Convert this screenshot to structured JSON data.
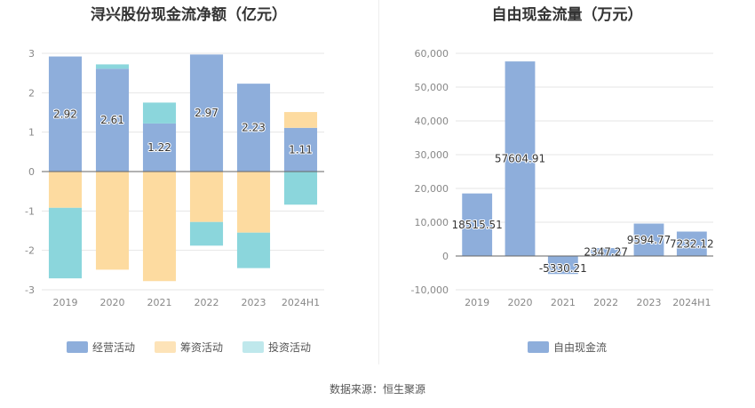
{
  "source": "数据来源：恒生聚源",
  "chart_data": [
    {
      "type": "bar",
      "stacked": true,
      "title": "浔兴股份现金流净额（亿元）",
      "categories": [
        "2019",
        "2020",
        "2021",
        "2022",
        "2023",
        "2024H1"
      ],
      "ylim": [
        -3,
        3
      ],
      "yticks": [
        3,
        2,
        1,
        0,
        -1,
        -2,
        -3
      ],
      "grid": true,
      "legend_position": "bottom",
      "series": [
        {
          "name": "经营活动",
          "color": "#8eaedb",
          "values": [
            2.92,
            2.61,
            1.22,
            2.97,
            2.23,
            1.11
          ]
        },
        {
          "name": "筹资活动",
          "color": "#fddba0",
          "values": [
            -0.92,
            -2.49,
            -2.78,
            -1.28,
            -1.55,
            0.4
          ]
        },
        {
          "name": "投资活动",
          "color": "#8bd6dc",
          "values": [
            -1.79,
            0.11,
            0.53,
            -0.6,
            -0.9,
            -0.84
          ]
        }
      ],
      "data_labels": [
        "2.92",
        "2.61",
        "1.22",
        "2.97",
        "2.23",
        "1.11"
      ]
    },
    {
      "type": "bar",
      "title": "自由现金流量（万元）",
      "categories": [
        "2019",
        "2020",
        "2021",
        "2022",
        "2023",
        "2024H1"
      ],
      "ylim": [
        -10000,
        60000
      ],
      "yticks": [
        "60,000",
        "50,000",
        "40,000",
        "30,000",
        "20,000",
        "10,000",
        "0",
        "-10,000"
      ],
      "grid": true,
      "legend_position": "bottom",
      "series": [
        {
          "name": "自由现金流",
          "color": "#8eaedb",
          "values": [
            18515.51,
            57604.91,
            -5330.21,
            2347.27,
            9594.77,
            7232.12
          ]
        }
      ],
      "data_labels": [
        "18515.51",
        "57604.91",
        "-5330.21",
        "2347.27",
        "9594.77",
        "7232.12"
      ]
    }
  ]
}
